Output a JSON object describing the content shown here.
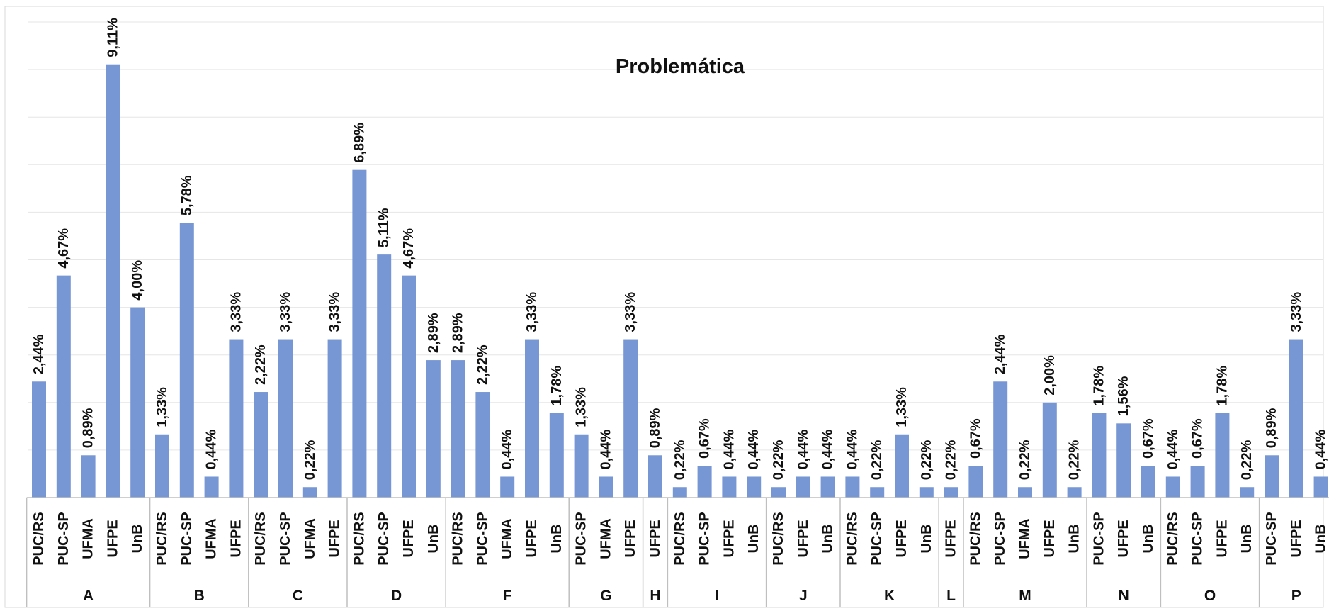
{
  "chart_data": {
    "type": "bar",
    "title": "Problemática",
    "xlabel": "",
    "ylabel": "",
    "ylim": [
      0,
      10.5
    ],
    "grid": true,
    "legend": "none",
    "bar_color": "#7796d4",
    "groups": [
      {
        "name": "A",
        "bars": [
          {
            "category": "PUC/RS",
            "value": 2.44,
            "label": "2,44%"
          },
          {
            "category": "PUC-SP",
            "value": 4.67,
            "label": "4,67%"
          },
          {
            "category": "UFMA",
            "value": 0.89,
            "label": "0,89%"
          },
          {
            "category": "UFPE",
            "value": 9.11,
            "label": "9,11%"
          },
          {
            "category": "UnB",
            "value": 4.0,
            "label": "4,00%"
          }
        ]
      },
      {
        "name": "B",
        "bars": [
          {
            "category": "PUC/RS",
            "value": 1.33,
            "label": "1,33%"
          },
          {
            "category": "PUC-SP",
            "value": 5.78,
            "label": "5,78%"
          },
          {
            "category": "UFMA",
            "value": 0.44,
            "label": "0,44%"
          },
          {
            "category": "UFPE",
            "value": 3.33,
            "label": "3,33%"
          }
        ]
      },
      {
        "name": "C",
        "bars": [
          {
            "category": "PUC/RS",
            "value": 2.22,
            "label": "2,22%"
          },
          {
            "category": "PUC-SP",
            "value": 3.33,
            "label": "3,33%"
          },
          {
            "category": "UFMA",
            "value": 0.22,
            "label": "0,22%"
          },
          {
            "category": "UFPE",
            "value": 3.33,
            "label": "3,33%"
          }
        ]
      },
      {
        "name": "D",
        "bars": [
          {
            "category": "PUC/RS",
            "value": 6.89,
            "label": "6,89%"
          },
          {
            "category": "PUC-SP",
            "value": 5.11,
            "label": "5,11%"
          },
          {
            "category": "UFPE",
            "value": 4.67,
            "label": "4,67%"
          },
          {
            "category": "UnB",
            "value": 2.89,
            "label": "2,89%"
          }
        ]
      },
      {
        "name": "F",
        "bars": [
          {
            "category": "PUC/RS",
            "value": 2.89,
            "label": "2,89%"
          },
          {
            "category": "PUC-SP",
            "value": 2.22,
            "label": "2,22%"
          },
          {
            "category": "UFMA",
            "value": 0.44,
            "label": "0,44%"
          },
          {
            "category": "UFPE",
            "value": 3.33,
            "label": "3,33%"
          },
          {
            "category": "UnB",
            "value": 1.78,
            "label": "1,78%"
          }
        ]
      },
      {
        "name": "G",
        "bars": [
          {
            "category": "PUC-SP",
            "value": 1.33,
            "label": "1,33%"
          },
          {
            "category": "UFMA",
            "value": 0.44,
            "label": "0,44%"
          },
          {
            "category": "UFPE",
            "value": 3.33,
            "label": "3,33%"
          }
        ]
      },
      {
        "name": "H",
        "bars": [
          {
            "category": "UFPE",
            "value": 0.89,
            "label": "0,89%"
          }
        ]
      },
      {
        "name": "I",
        "bars": [
          {
            "category": "PUC/RS",
            "value": 0.22,
            "label": "0,22%"
          },
          {
            "category": "PUC-SP",
            "value": 0.67,
            "label": "0,67%"
          },
          {
            "category": "UFPE",
            "value": 0.44,
            "label": "0,44%"
          },
          {
            "category": "UnB",
            "value": 0.44,
            "label": "0,44%"
          }
        ]
      },
      {
        "name": "J",
        "bars": [
          {
            "category": "PUC/RS",
            "value": 0.22,
            "label": "0,22%"
          },
          {
            "category": "UFPE",
            "value": 0.44,
            "label": "0,44%"
          },
          {
            "category": "UnB",
            "value": 0.44,
            "label": "0,44%"
          }
        ]
      },
      {
        "name": "K",
        "bars": [
          {
            "category": "PUC/RS",
            "value": 0.44,
            "label": "0,44%"
          },
          {
            "category": "PUC-SP",
            "value": 0.22,
            "label": "0,22%"
          },
          {
            "category": "UFPE",
            "value": 1.33,
            "label": "1,33%"
          },
          {
            "category": "UnB",
            "value": 0.22,
            "label": "0,22%"
          }
        ]
      },
      {
        "name": "L",
        "bars": [
          {
            "category": "UFPE",
            "value": 0.22,
            "label": "0,22%"
          }
        ]
      },
      {
        "name": "M",
        "bars": [
          {
            "category": "PUC/RS",
            "value": 0.67,
            "label": "0,67%"
          },
          {
            "category": "PUC-SP",
            "value": 2.44,
            "label": "2,44%"
          },
          {
            "category": "UFMA",
            "value": 0.22,
            "label": "0,22%"
          },
          {
            "category": "UFPE",
            "value": 2.0,
            "label": "2,00%"
          },
          {
            "category": "UnB",
            "value": 0.22,
            "label": "0,22%"
          }
        ]
      },
      {
        "name": "N",
        "bars": [
          {
            "category": "PUC-SP",
            "value": 1.78,
            "label": "1,78%"
          },
          {
            "category": "UFPE",
            "value": 1.56,
            "label": "1,56%"
          },
          {
            "category": "UnB",
            "value": 0.67,
            "label": "0,67%"
          }
        ]
      },
      {
        "name": "O",
        "bars": [
          {
            "category": "PUC/RS",
            "value": 0.44,
            "label": "0,44%"
          },
          {
            "category": "PUC-SP",
            "value": 0.67,
            "label": "0,67%"
          },
          {
            "category": "UFPE",
            "value": 1.78,
            "label": "1,78%"
          },
          {
            "category": "UnB",
            "value": 0.22,
            "label": "0,22%"
          }
        ]
      },
      {
        "name": "P",
        "bars": [
          {
            "category": "PUC-SP",
            "value": 0.89,
            "label": "0,89%"
          },
          {
            "category": "UFPE",
            "value": 3.33,
            "label": "3,33%"
          },
          {
            "category": "UnB",
            "value": 0.44,
            "label": "0,44%"
          }
        ]
      }
    ]
  }
}
